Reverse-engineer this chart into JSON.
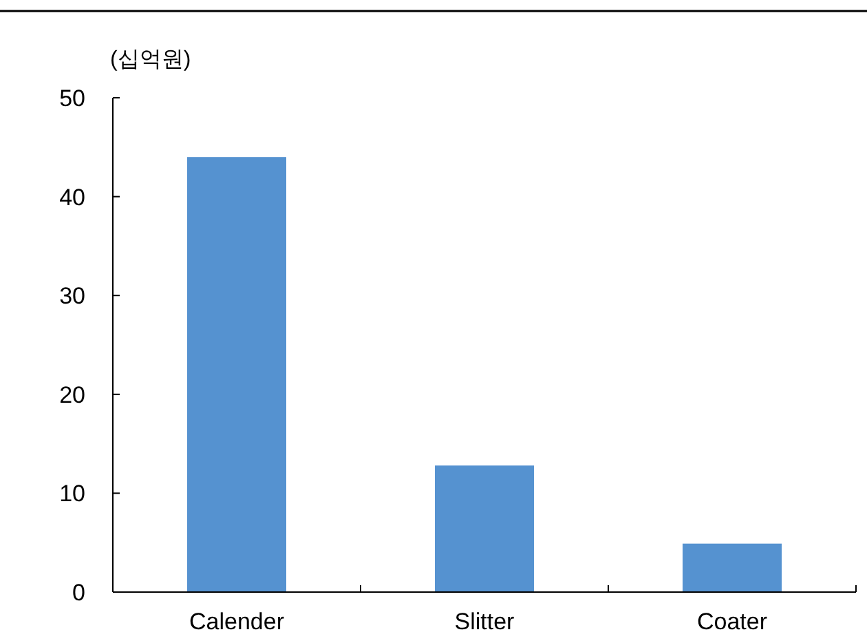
{
  "chart_data": {
    "type": "bar",
    "ylabel": "(십억원)",
    "categories": [
      "Calender",
      "Slitter",
      "Coater"
    ],
    "values": [
      44,
      12.8,
      4.9
    ],
    "color": "#5592d0",
    "ylim": [
      0,
      50
    ],
    "yticks": [
      0,
      10,
      20,
      30,
      40,
      50
    ],
    "grid": false
  }
}
